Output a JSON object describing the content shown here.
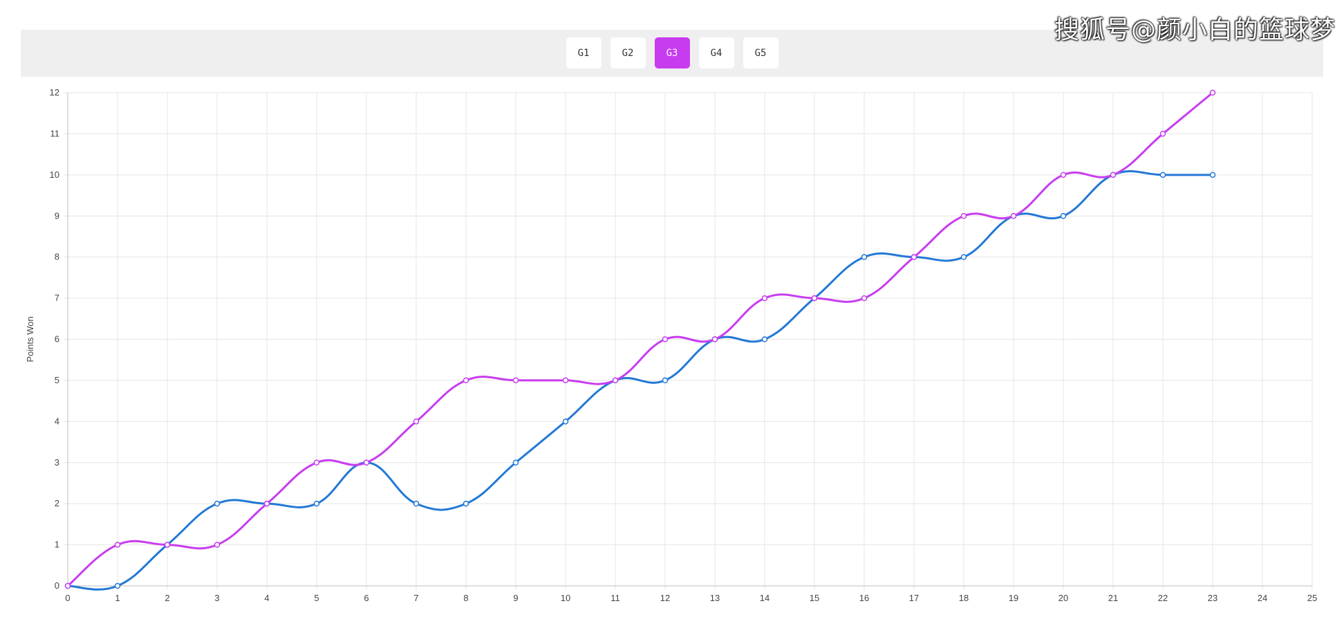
{
  "watermark": "搜狐号@颜小白的篮球梦",
  "tabs": [
    {
      "label": "G1",
      "active": false
    },
    {
      "label": "G2",
      "active": false
    },
    {
      "label": "G3",
      "active": true
    },
    {
      "label": "G4",
      "active": false
    },
    {
      "label": "G5",
      "active": false
    }
  ],
  "colors": {
    "active_tab": "#c83cf0",
    "series_blue": "#2278d6",
    "series_magenta": "#c83cf0",
    "grid": "#e4e4e4"
  },
  "chart_data": {
    "type": "line",
    "ylabel": "Points Won",
    "xlabel": "",
    "xlim": [
      0,
      25
    ],
    "ylim": [
      0,
      12
    ],
    "x_ticks": [
      0,
      1,
      2,
      3,
      4,
      5,
      6,
      7,
      8,
      9,
      10,
      11,
      12,
      13,
      14,
      15,
      16,
      17,
      18,
      19,
      20,
      21,
      22,
      23,
      24,
      25
    ],
    "y_ticks": [
      0,
      1,
      2,
      3,
      4,
      5,
      6,
      7,
      8,
      9,
      10,
      11,
      12
    ],
    "grid": true,
    "smooth": true,
    "series": [
      {
        "color": "#2278d6",
        "x": [
          0,
          1,
          2,
          3,
          4,
          5,
          6,
          7,
          8,
          9,
          10,
          11,
          12,
          13,
          14,
          15,
          16,
          17,
          18,
          19,
          20,
          21,
          22,
          23
        ],
        "values": [
          0,
          0,
          1,
          2,
          2,
          2,
          3,
          2,
          2,
          3,
          4,
          5,
          5,
          6,
          6,
          7,
          8,
          8,
          8,
          9,
          9,
          10,
          10,
          10
        ]
      },
      {
        "color": "#c83cf0",
        "x": [
          0,
          1,
          2,
          3,
          4,
          5,
          6,
          7,
          8,
          9,
          10,
          11,
          12,
          13,
          14,
          15,
          16,
          17,
          18,
          19,
          20,
          21,
          22,
          23
        ],
        "values": [
          0,
          1,
          1,
          1,
          2,
          3,
          3,
          4,
          5,
          5,
          5,
          5,
          6,
          6,
          7,
          7,
          7,
          8,
          9,
          9,
          10,
          10,
          11,
          12
        ]
      }
    ]
  }
}
